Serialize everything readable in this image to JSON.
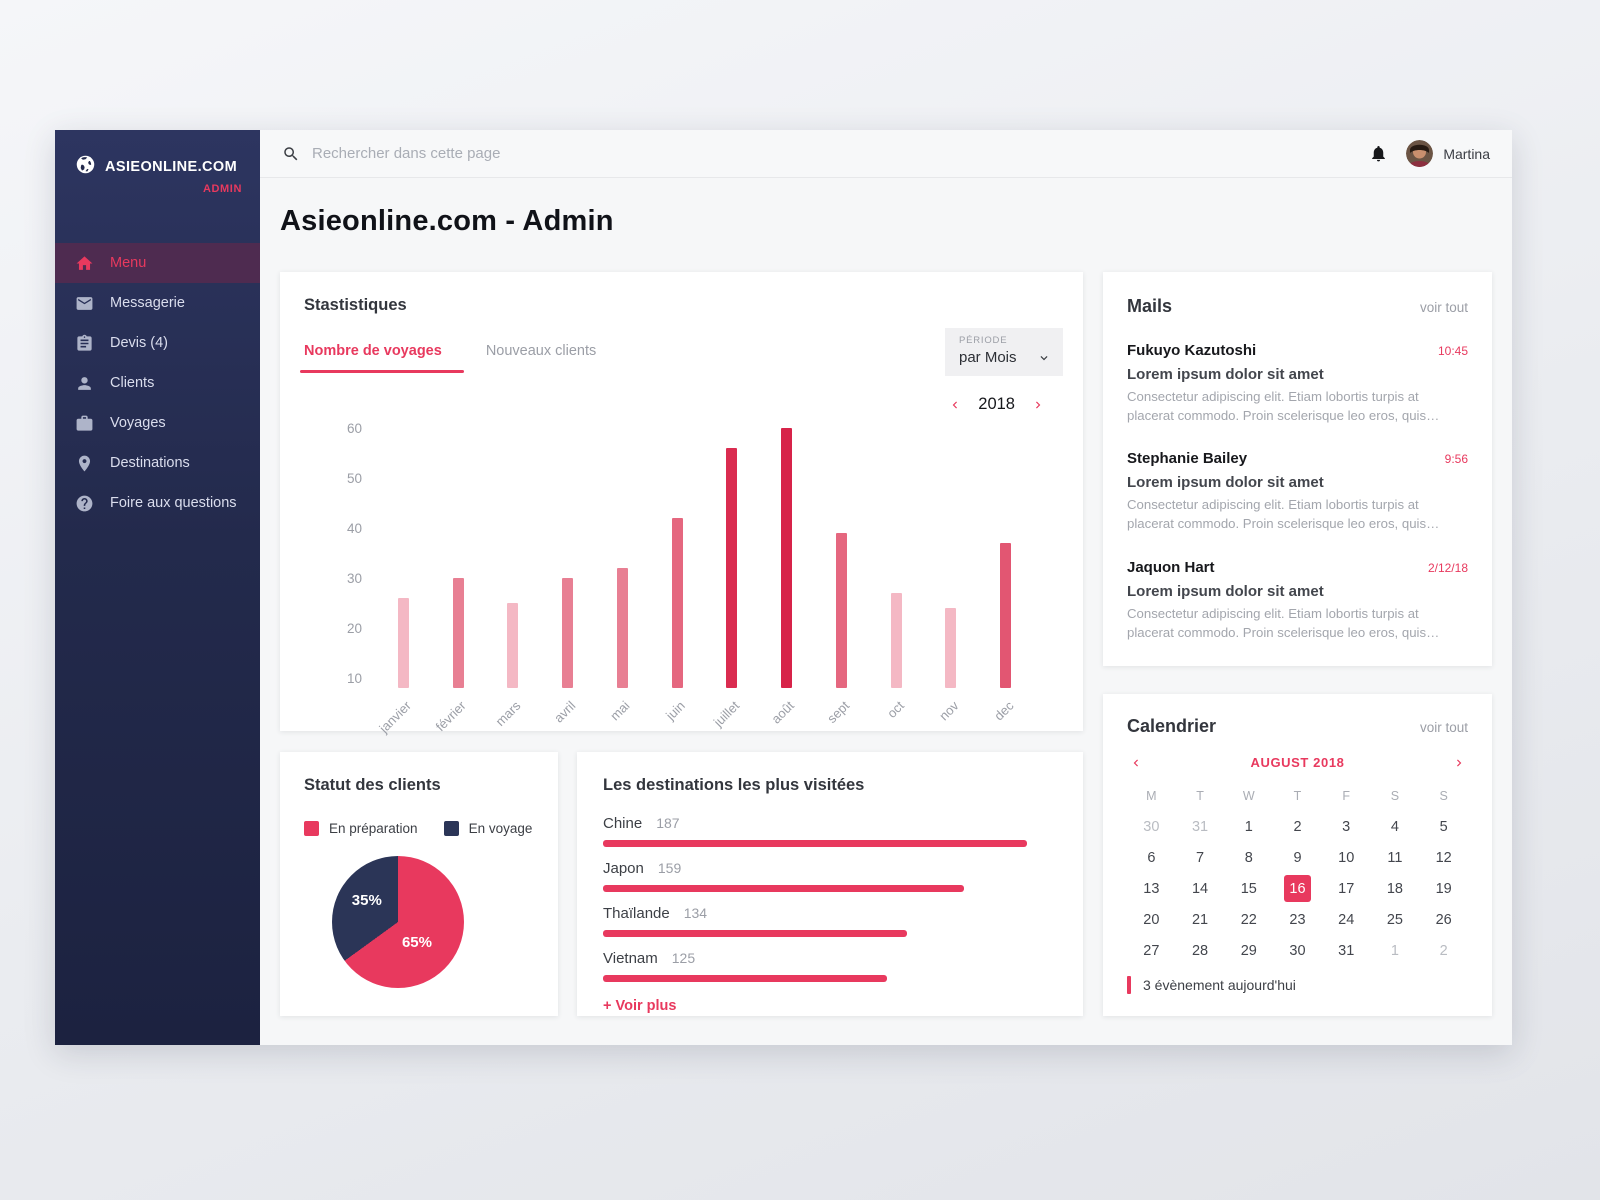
{
  "page_title": "Asieonline.com - Admin",
  "sidebar": {
    "logo_title": "ASIEONLINE.COM",
    "logo_subtitle": "ADMIN",
    "items": [
      {
        "name": "menu",
        "label": "Menu",
        "icon": "home-icon",
        "active": true
      },
      {
        "name": "messagerie",
        "label": "Messagerie",
        "icon": "mail-icon",
        "active": false
      },
      {
        "name": "devis",
        "label": "Devis (4)",
        "icon": "clipboard-icon",
        "active": false
      },
      {
        "name": "clients",
        "label": "Clients",
        "icon": "person-icon",
        "active": false
      },
      {
        "name": "voyages",
        "label": "Voyages",
        "icon": "briefcase-icon",
        "active": false
      },
      {
        "name": "destinations",
        "label": "Destinations",
        "icon": "pin-icon",
        "active": false
      },
      {
        "name": "faq",
        "label": "Foire aux questions",
        "icon": "help-icon",
        "active": false
      }
    ]
  },
  "topbar": {
    "search_placeholder": "Rechercher dans cette page",
    "username": "Martina"
  },
  "stats": {
    "title": "Stastistiques",
    "tabs": [
      {
        "label": "Nombre de voyages",
        "active": true
      },
      {
        "label": "Nouveaux clients",
        "active": false
      }
    ],
    "period_label": "PÉRIODE",
    "period_value": "par Mois",
    "year": "2018"
  },
  "clients_status": {
    "title": "Statut des clients"
  },
  "destinations_card": {
    "title": "Les destinations les plus visitées",
    "more_label": "+ Voir plus"
  },
  "mails": {
    "title": "Mails",
    "view_all": "voir tout",
    "items": [
      {
        "sender": "Fukuyo Kazutoshi",
        "time": "10:45",
        "subject": "Lorem ipsum dolor sit amet",
        "preview": "Consectetur adipiscing elit. Etiam lobortis turpis at placerat commodo. Proin scelerisque leo eros, quis…"
      },
      {
        "sender": "Stephanie Bailey",
        "time": "9:56",
        "subject": "Lorem ipsum dolor sit amet",
        "preview": "Consectetur adipiscing elit. Etiam lobortis turpis at placerat commodo. Proin scelerisque leo eros, quis…"
      },
      {
        "sender": "Jaquon Hart",
        "time": "2/12/18",
        "subject": "Lorem ipsum dolor sit amet",
        "preview": "Consectetur adipiscing elit. Etiam lobortis turpis at placerat commodo. Proin scelerisque leo eros, quis…"
      }
    ]
  },
  "calendar": {
    "title": "Calendrier",
    "view_all": "voir tout",
    "month_label": "AUGUST 2018",
    "day_headers": [
      "M",
      "T",
      "W",
      "T",
      "F",
      "S",
      "S"
    ],
    "weeks": [
      [
        {
          "d": "30",
          "muted": true
        },
        {
          "d": "31",
          "muted": true
        },
        {
          "d": "1"
        },
        {
          "d": "2"
        },
        {
          "d": "3"
        },
        {
          "d": "4"
        },
        {
          "d": "5"
        }
      ],
      [
        {
          "d": "6"
        },
        {
          "d": "7"
        },
        {
          "d": "8"
        },
        {
          "d": "9"
        },
        {
          "d": "10"
        },
        {
          "d": "11"
        },
        {
          "d": "12"
        }
      ],
      [
        {
          "d": "13"
        },
        {
          "d": "14"
        },
        {
          "d": "15"
        },
        {
          "d": "16",
          "selected": true
        },
        {
          "d": "17"
        },
        {
          "d": "18"
        },
        {
          "d": "19"
        }
      ],
      [
        {
          "d": "20"
        },
        {
          "d": "21"
        },
        {
          "d": "22"
        },
        {
          "d": "23"
        },
        {
          "d": "24"
        },
        {
          "d": "25"
        },
        {
          "d": "26"
        }
      ],
      [
        {
          "d": "27"
        },
        {
          "d": "28"
        },
        {
          "d": "29"
        },
        {
          "d": "30"
        },
        {
          "d": "31"
        },
        {
          "d": "1",
          "muted": true
        },
        {
          "d": "2",
          "muted": true
        }
      ]
    ],
    "footer": "3 évènement aujourd'hui"
  },
  "colors": {
    "accent": "#e8395e",
    "sidebar_active_bg": "#4e2b50",
    "navy": "#2b3557"
  },
  "chart_data": [
    {
      "id": "voyages-par-mois",
      "type": "bar",
      "title": "Nombre de voyages",
      "categories": [
        "janvier",
        "février",
        "mars",
        "avril",
        "mai",
        "juin",
        "juillet",
        "août",
        "sept",
        "oct",
        "nov",
        "dec"
      ],
      "values": [
        26,
        30,
        25,
        30,
        32,
        42,
        56,
        60,
        39,
        27,
        24,
        37
      ],
      "bar_colors": [
        "#f4b8c4",
        "#e87f93",
        "#f4b8c4",
        "#e87f93",
        "#e87f93",
        "#e5677f",
        "#da2c50",
        "#d72349",
        "#e5677f",
        "#f4b8c4",
        "#f4b8c4",
        "#e25672"
      ],
      "xlabel": "",
      "ylabel": "",
      "ylim": [
        8,
        62
      ],
      "yticks": [
        10,
        20,
        30,
        40,
        50,
        60
      ],
      "grid": false,
      "legend": "none"
    },
    {
      "id": "statut-des-clients",
      "type": "pie",
      "labels": [
        "En préparation",
        "En voyage"
      ],
      "values": [
        65,
        35
      ],
      "value_labels": [
        "65%",
        "35%"
      ],
      "colors": [
        "#e8395e",
        "#2b3557"
      ],
      "start_angle_deg": 0,
      "direction": "clockwise"
    },
    {
      "id": "destinations-les-plus-visitees",
      "type": "bar",
      "orientation": "horizontal",
      "categories": [
        "Chine",
        "Japon",
        "Thaïlande",
        "Vietnam"
      ],
      "values": [
        187,
        159,
        134,
        125
      ],
      "bar_color": "#e8395e",
      "scale_max": 200
    }
  ]
}
